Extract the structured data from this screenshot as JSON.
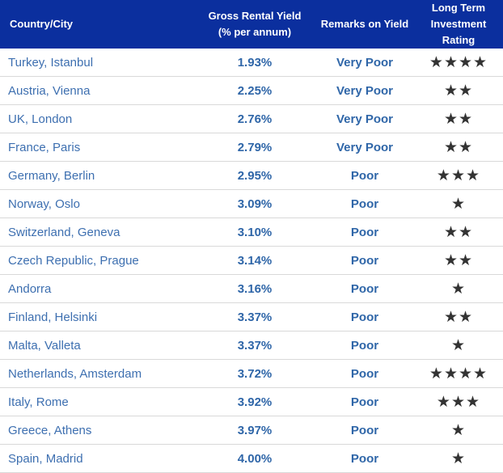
{
  "headers": {
    "country": "Country/City",
    "yield_line1": "Gross Rental Yield",
    "yield_line2": "(% per annum)",
    "remarks": "Remarks on Yield",
    "rating_line1": "Long Term",
    "rating_line2": "Investment Rating"
  },
  "rows": [
    {
      "city": "Turkey, Istanbul",
      "yield": "1.93%",
      "remark": "Very Poor",
      "stars": 4
    },
    {
      "city": "Austria, Vienna",
      "yield": "2.25%",
      "remark": "Very Poor",
      "stars": 2
    },
    {
      "city": "UK, London",
      "yield": "2.76%",
      "remark": "Very Poor",
      "stars": 2
    },
    {
      "city": "France, Paris",
      "yield": "2.79%",
      "remark": "Very Poor",
      "stars": 2
    },
    {
      "city": "Germany, Berlin",
      "yield": "2.95%",
      "remark": "Poor",
      "stars": 3
    },
    {
      "city": "Norway, Oslo",
      "yield": "3.09%",
      "remark": "Poor",
      "stars": 1
    },
    {
      "city": "Switzerland, Geneva",
      "yield": "3.10%",
      "remark": "Poor",
      "stars": 2
    },
    {
      "city": "Czech Republic, Prague",
      "yield": "3.14%",
      "remark": "Poor",
      "stars": 2
    },
    {
      "city": "Andorra",
      "yield": "3.16%",
      "remark": "Poor",
      "stars": 1
    },
    {
      "city": "Finland, Helsinki",
      "yield": "3.37%",
      "remark": "Poor",
      "stars": 2
    },
    {
      "city": "Malta, Valleta",
      "yield": "3.37%",
      "remark": "Poor",
      "stars": 1
    },
    {
      "city": "Netherlands, Amsterdam",
      "yield": "3.72%",
      "remark": "Poor",
      "stars": 4
    },
    {
      "city": "Italy, Rome",
      "yield": "3.92%",
      "remark": "Poor",
      "stars": 3
    },
    {
      "city": "Greece, Athens",
      "yield": "3.97%",
      "remark": "Poor",
      "stars": 1
    },
    {
      "city": "Spain, Madrid",
      "yield": "4.00%",
      "remark": "Poor",
      "stars": 1
    }
  ],
  "colors": {
    "header_bg": "#0b2f9e",
    "city_text": "#3d6fb0",
    "value_text": "#2f66a8",
    "star_color": "#333333"
  }
}
